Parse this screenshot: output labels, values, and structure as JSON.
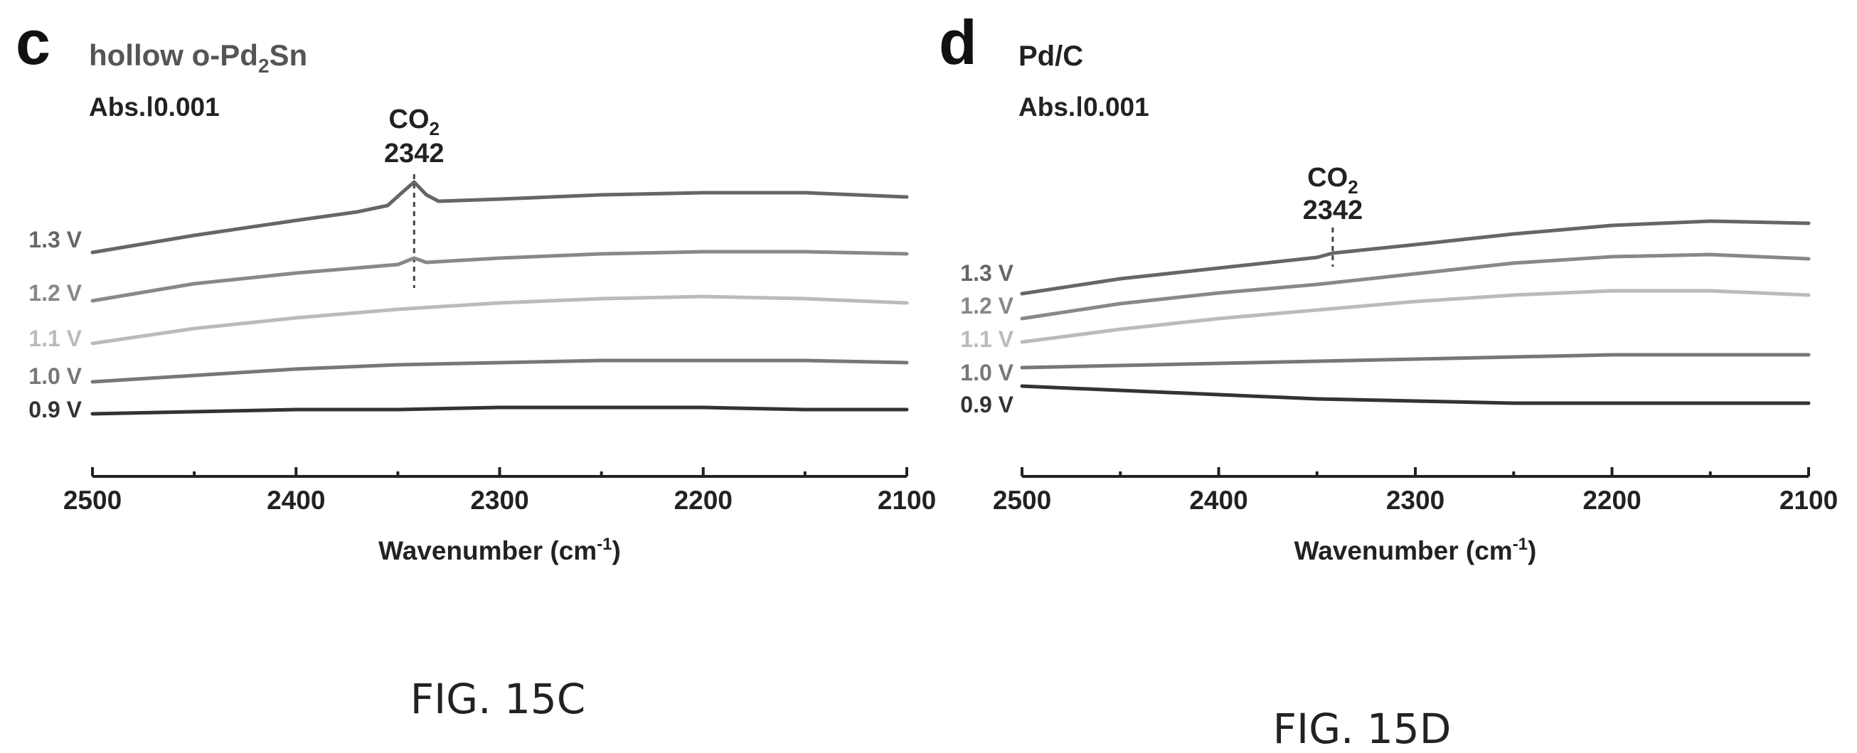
{
  "panels": [
    {
      "letter": "c",
      "title": "hollow o-Pd",
      "title_sub": "2",
      "title_tail": "Sn",
      "scale": "Abs.Ⅰ0.001",
      "annotation": {
        "species": "CO",
        "species_sub": "2",
        "value": "2342",
        "x": 2342
      },
      "caption": "FIG. 15C",
      "chart_data": {
        "type": "line",
        "title": "hollow o-Pd2Sn",
        "xlabel": "Wavenumber (cm-1)",
        "xlabel_main": "Wavenumber (cm",
        "xlabel_sup": "-1",
        "xlabel_tail": ")",
        "ylabel": "",
        "xlim": [
          2500,
          2100
        ],
        "x_ticks": [
          2500,
          2400,
          2300,
          2200,
          2100
        ],
        "x_tick_labels": [
          "2500",
          "2400",
          "2300",
          "2200",
          "2100"
        ],
        "grid": false,
        "series": [
          {
            "name": "1.3 V",
            "color": "#666666",
            "x": [
              2500,
              2450,
              2400,
              2370,
              2355,
              2348,
              2342,
              2336,
              2330,
              2300,
              2250,
              2200,
              2150,
              2100
            ],
            "y": [
              0.0,
              0.0008,
              0.0015,
              0.0019,
              0.0022,
              0.0028,
              0.0033,
              0.0027,
              0.0024,
              0.0025,
              0.0027,
              0.0028,
              0.0028,
              0.0026
            ]
          },
          {
            "name": "1.2 V",
            "color": "#888888",
            "x": [
              2500,
              2450,
              2400,
              2350,
              2342,
              2336,
              2300,
              2250,
              2200,
              2150,
              2100
            ],
            "y": [
              0.0,
              0.0008,
              0.0013,
              0.0017,
              0.002,
              0.0018,
              0.002,
              0.0022,
              0.0023,
              0.0023,
              0.0022
            ]
          },
          {
            "name": "1.1 V",
            "color": "#bbbbbb",
            "x": [
              2500,
              2450,
              2400,
              2350,
              2300,
              2250,
              2200,
              2150,
              2100
            ],
            "y": [
              0.0,
              0.0007,
              0.0012,
              0.0016,
              0.0019,
              0.0021,
              0.0022,
              0.0021,
              0.0019
            ]
          },
          {
            "name": "1.0 V",
            "color": "#777777",
            "x": [
              2500,
              2450,
              2400,
              2350,
              2300,
              2250,
              2200,
              2150,
              2100
            ],
            "y": [
              0.0,
              0.0003,
              0.0006,
              0.0008,
              0.0009,
              0.001,
              0.001,
              0.001,
              0.0009
            ]
          },
          {
            "name": "0.9 V",
            "color": "#333333",
            "x": [
              2500,
              2450,
              2400,
              2350,
              2300,
              2250,
              2200,
              2150,
              2100
            ],
            "y": [
              0.0,
              0.0001,
              0.0002,
              0.0002,
              0.0003,
              0.0003,
              0.0003,
              0.0002,
              0.0002
            ]
          }
        ]
      }
    },
    {
      "letter": "d",
      "title": "Pd/C",
      "title_sub": "",
      "title_tail": "",
      "scale": "Abs.Ⅰ0.001",
      "annotation": {
        "species": "CO",
        "species_sub": "2",
        "value": "2342",
        "x": 2342
      },
      "caption": "FIG. 15D",
      "chart_data": {
        "type": "line",
        "title": "Pd/C",
        "xlabel": "Wavenumber (cm-1)",
        "xlabel_main": "Wavenumber (cm",
        "xlabel_sup": "-1",
        "xlabel_tail": ")",
        "ylabel": "",
        "xlim": [
          2500,
          2100
        ],
        "x_ticks": [
          2500,
          2400,
          2300,
          2200,
          2100
        ],
        "x_tick_labels": [
          "2500",
          "2400",
          "2300",
          "2200",
          "2100"
        ],
        "grid": false,
        "series": [
          {
            "name": "1.3 V",
            "color": "#666666",
            "x": [
              2500,
              2450,
              2400,
              2350,
              2342,
              2300,
              2250,
              2200,
              2150,
              2100
            ],
            "y": [
              0.0,
              0.0007,
              0.0012,
              0.0017,
              0.0019,
              0.0023,
              0.0028,
              0.0032,
              0.0034,
              0.0033
            ]
          },
          {
            "name": "1.2 V",
            "color": "#888888",
            "x": [
              2500,
              2450,
              2400,
              2350,
              2300,
              2250,
              2200,
              2150,
              2100
            ],
            "y": [
              0.0,
              0.0007,
              0.0012,
              0.0016,
              0.0021,
              0.0026,
              0.0029,
              0.003,
              0.0028
            ]
          },
          {
            "name": "1.1 V",
            "color": "#bbbbbb",
            "x": [
              2500,
              2450,
              2400,
              2350,
              2300,
              2250,
              2200,
              2150,
              2100
            ],
            "y": [
              0.0,
              0.0006,
              0.0011,
              0.0015,
              0.0019,
              0.0022,
              0.0024,
              0.0024,
              0.0022
            ]
          },
          {
            "name": "1.0 V",
            "color": "#777777",
            "x": [
              2500,
              2450,
              2400,
              2350,
              2300,
              2250,
              2200,
              2150,
              2100
            ],
            "y": [
              0.0,
              0.0001,
              0.0002,
              0.0003,
              0.0004,
              0.0005,
              0.0006,
              0.0006,
              0.0006
            ]
          },
          {
            "name": "0.9 V",
            "color": "#333333",
            "x": [
              2500,
              2450,
              2400,
              2350,
              2300,
              2250,
              2200,
              2150,
              2100
            ],
            "y": [
              0.0,
              -0.0002,
              -0.0004,
              -0.0006,
              -0.0007,
              -0.0008,
              -0.0008,
              -0.0008,
              -0.0008
            ]
          }
        ]
      }
    }
  ]
}
